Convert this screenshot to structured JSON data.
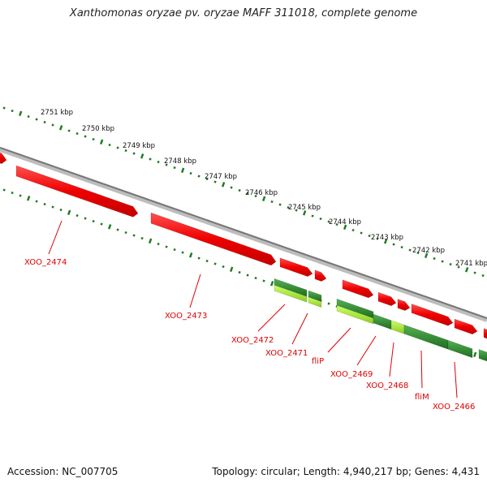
{
  "title": "Xanthomonas oryzae pv. oryzae MAFF 311018, complete genome",
  "footer": {
    "accession": "Accession: NC_007705",
    "topology": "Topology: circular; Length: 4,940,217 bp; Genes: 4,431"
  },
  "scale_labels": [
    "2751 kbp",
    "2750 kbp",
    "2749 kbp",
    "2748 kbp",
    "2747 kbp",
    "2746 kbp",
    "2745 kbp",
    "2744 kbp",
    "2743 kbp",
    "2742 kbp",
    "2741 kbp"
  ],
  "gene_labels": [
    "XOO_2474",
    "XOO_2473",
    "XOO_2472",
    "XOO_2471",
    "fliP",
    "XOO_2469",
    "XOO_2468",
    "fliM",
    "XOO_2466"
  ],
  "colors": {
    "backbone": "#8c8c8c",
    "ticks": "#1f7a1f",
    "gene_red": "#ee0000",
    "gene_green": "#2e8b2e",
    "gene_lightgreen": "#aee63a",
    "label": "#dd0000"
  }
}
